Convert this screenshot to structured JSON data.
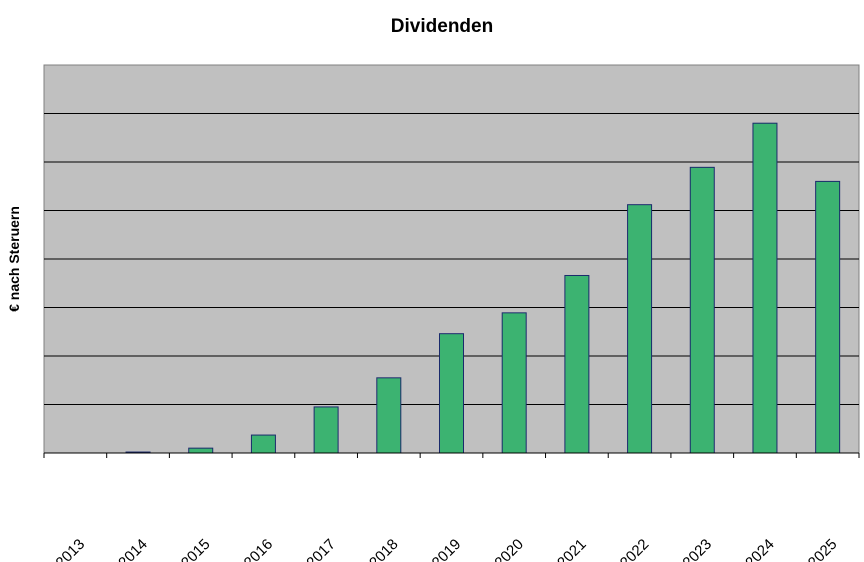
{
  "chart_data": {
    "type": "bar",
    "title": "Dividenden",
    "xlabel": "",
    "ylabel": "€ nach Steruern",
    "categories": [
      "2013",
      "2014",
      "2015",
      "2016",
      "2017",
      "2018",
      "2019",
      "2020",
      "2021",
      "2022",
      "2023",
      "2024",
      "2025"
    ],
    "values": [
      0,
      0.02,
      0.1,
      0.37,
      0.95,
      1.55,
      2.46,
      2.89,
      3.66,
      5.12,
      5.89,
      6.8,
      5.6
    ],
    "ylim": [
      0,
      8
    ],
    "y_tick_labels_shown": false,
    "grid": true,
    "legend": "none",
    "colors": {
      "bar_fill": "#3cb371",
      "bar_stroke": "#1a2a6c",
      "plot_background": "#c0c0c0",
      "gridline": "#000000"
    }
  }
}
